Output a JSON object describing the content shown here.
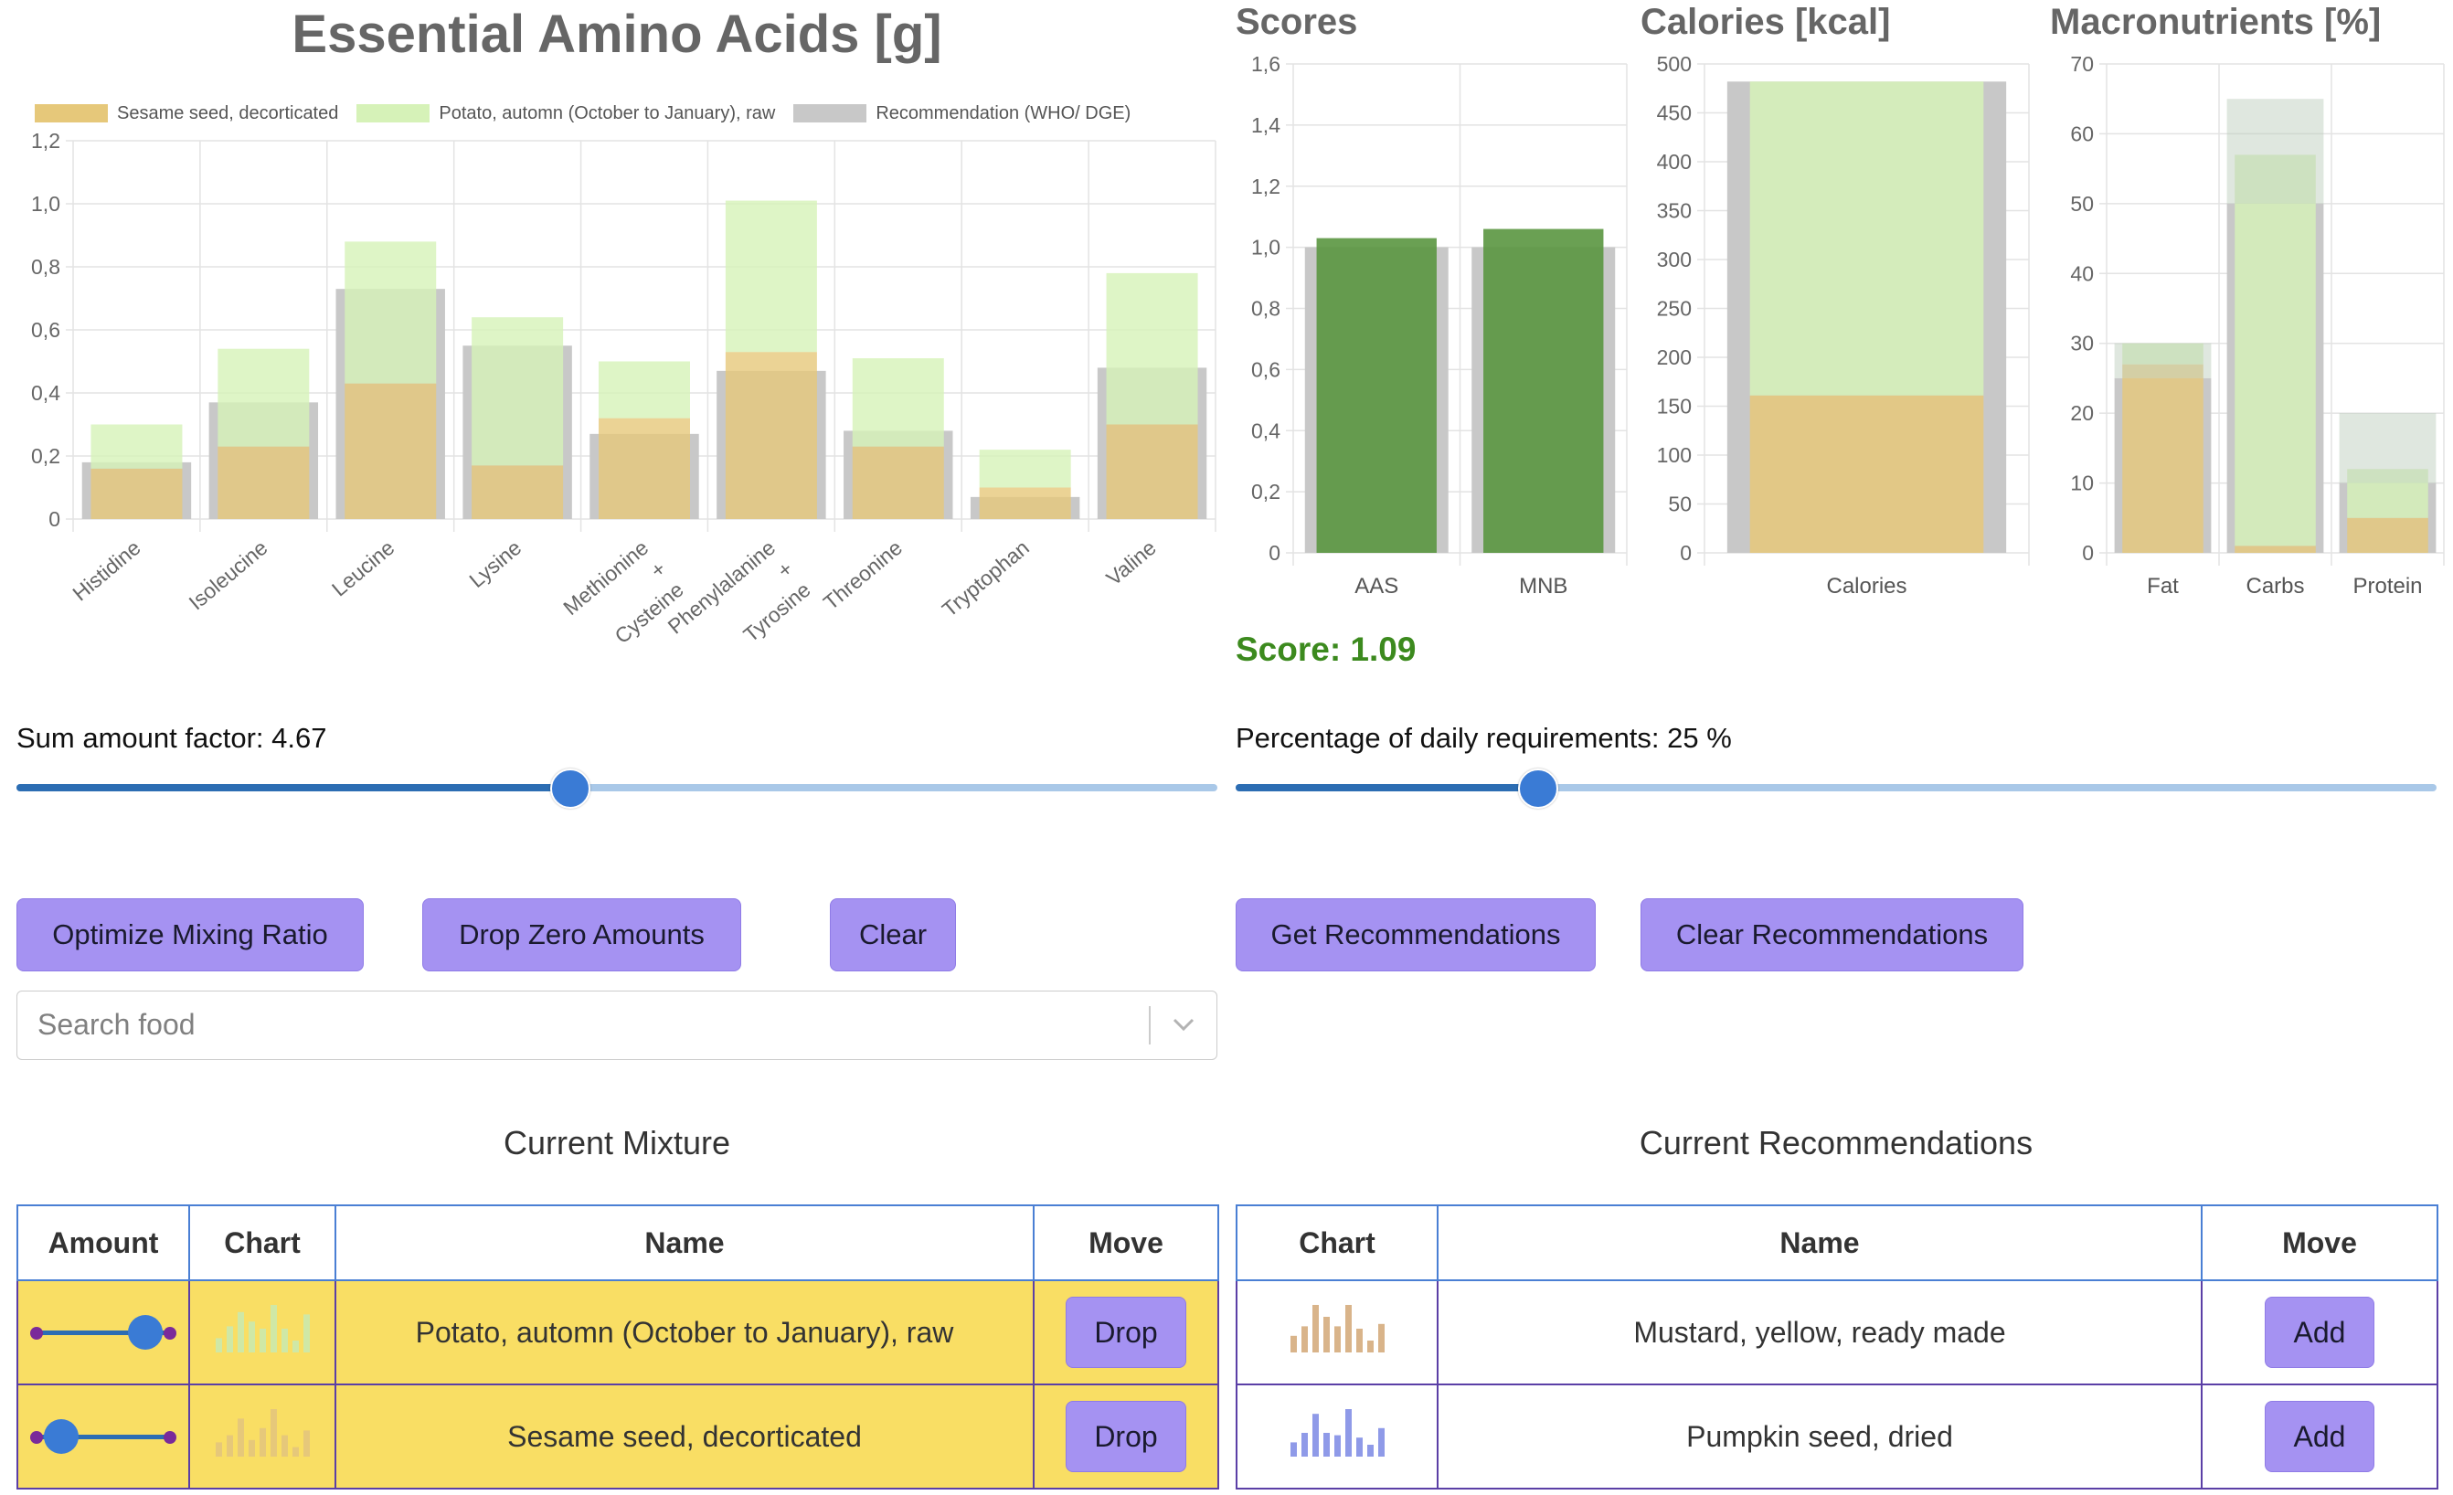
{
  "colors": {
    "sesame": "#e6c87a",
    "potato": "#d6f2b8",
    "recommendation": "#c8c8c8",
    "score_bar": "#5a9640",
    "accent_button": "#a592f2",
    "mixture_row": "#f9de64",
    "score_text": "#3c8a1e"
  },
  "header": {
    "title": "Essential Amino Acids [g]"
  },
  "legend": [
    {
      "label": "Sesame seed, decorticated",
      "color": "#e6c87a"
    },
    {
      "label": "Potato, automn (October to January), raw",
      "color": "#d6f2b8"
    },
    {
      "label": "Recommendation (WHO/ DGE)",
      "color": "#c8c8c8"
    }
  ],
  "chart_data": [
    {
      "type": "bar",
      "title": "Essential Amino Acids [g]",
      "categories": [
        "Histidine",
        "Isoleucine",
        "Leucine",
        "Lysine",
        [
          "Methionine",
          "+",
          "Cysteine"
        ],
        [
          "Phenylalanine",
          "+",
          "Tyrosine"
        ],
        "Threonine",
        "Tryptophan",
        "Valine"
      ],
      "ylim": [
        0,
        1.2
      ],
      "yticks": [
        "0",
        "0,2",
        "0,4",
        "0,6",
        "0,8",
        "1,0",
        "1,2"
      ],
      "series": [
        {
          "name": "Sesame seed, decorticated",
          "stack": "mix",
          "values": [
            0.16,
            0.23,
            0.43,
            0.17,
            0.32,
            0.53,
            0.23,
            0.1,
            0.3
          ]
        },
        {
          "name": "Potato, automn (October to January), raw",
          "stack": "mix",
          "values": [
            0.14,
            0.31,
            0.45,
            0.47,
            0.18,
            0.48,
            0.28,
            0.12,
            0.48
          ]
        },
        {
          "name": "Recommendation (WHO/ DGE)",
          "stack": "rec",
          "values": [
            0.18,
            0.37,
            0.73,
            0.55,
            0.27,
            0.47,
            0.28,
            0.07,
            0.48
          ]
        }
      ],
      "grid": true,
      "legend_position": "top"
    },
    {
      "type": "bar",
      "title": "Scores",
      "categories": [
        "AAS",
        "MNB"
      ],
      "ylim": [
        0,
        1.6
      ],
      "yticks": [
        "0",
        "0,2",
        "0,4",
        "0,6",
        "0,8",
        "1,0",
        "1,2",
        "1,4",
        "1,6"
      ],
      "series": [
        {
          "name": "Recommendation",
          "stack": "rec",
          "values": [
            1.0,
            1.0
          ]
        },
        {
          "name": "Score",
          "stack": "mix",
          "values": [
            1.03,
            1.06
          ]
        }
      ],
      "grid": true
    },
    {
      "type": "bar",
      "title": "Calories [kcal]",
      "categories": [
        "Calories"
      ],
      "ylim": [
        0,
        500
      ],
      "yticks": [
        "0",
        "50",
        "100",
        "150",
        "200",
        "250",
        "300",
        "350",
        "400",
        "450",
        "500"
      ],
      "series": [
        {
          "name": "Recommendation",
          "stack": "rec",
          "values": [
            482
          ]
        },
        {
          "name": "Sesame seed, decorticated",
          "stack": "mix",
          "values": [
            161
          ]
        },
        {
          "name": "Potato, automn (October to January), raw",
          "stack": "mix",
          "values": [
            321
          ]
        }
      ],
      "grid": true
    },
    {
      "type": "bar",
      "title": "Macronutrients [%]",
      "categories": [
        "Fat",
        "Carbs",
        "Protein"
      ],
      "ylim": [
        0,
        70
      ],
      "yticks": [
        "0",
        "10",
        "20",
        "30",
        "40",
        "50",
        "60",
        "70"
      ],
      "series": [
        {
          "name": "Recommendation",
          "stack": "rec",
          "values": [
            25,
            50,
            10
          ]
        },
        {
          "name": "Sesame seed, decorticated",
          "stack": "mix",
          "values": [
            27,
            1,
            5
          ]
        },
        {
          "name": "Potato, automn (October to January), raw",
          "stack": "mix",
          "values": [
            3,
            56,
            7
          ]
        }
      ],
      "grid": true
    }
  ],
  "extra_bars": {
    "macros_top_recommendation": [
      30,
      65,
      20
    ]
  },
  "score_label": "Score: 1.09",
  "left_controls": {
    "sum_factor_label": "Sum amount factor: 4.67",
    "sum_factor_value": 0.46,
    "optimize_label": "Optimize Mixing Ratio",
    "drop_zero_label": "Drop Zero Amounts",
    "clear_label": "Clear",
    "search_placeholder": "Search food"
  },
  "right_controls": {
    "daily_req_label": "Percentage of daily requirements: 25 %",
    "daily_req_value": 0.25,
    "get_rec_label": "Get Recommendations",
    "clear_rec_label": "Clear Recommendations"
  },
  "mixture": {
    "title": "Current Mixture",
    "headers": {
      "amount": "Amount",
      "chart": "Chart",
      "name": "Name",
      "move": "Move"
    },
    "rows": [
      {
        "name": "Potato, automn (October to January), raw",
        "amount": 0.79,
        "button": "Drop",
        "bars": [
          0.3,
          0.55,
          0.85,
          0.65,
          0.5,
          1.0,
          0.5,
          0.25,
          0.8
        ],
        "bar_color": "#cfe8a6"
      },
      {
        "name": "Sesame seed, decorticated",
        "amount": 0.21,
        "button": "Drop",
        "bars": [
          0.3,
          0.45,
          0.8,
          0.35,
          0.6,
          1.0,
          0.45,
          0.2,
          0.55
        ],
        "bar_color": "#e6c87a"
      }
    ]
  },
  "recommendations": {
    "title": "Current Recommendations",
    "headers": {
      "chart": "Chart",
      "name": "Name",
      "move": "Move"
    },
    "rows": [
      {
        "name": "Mustard, yellow, ready made",
        "button": "Add",
        "bars": [
          0.35,
          0.55,
          1.0,
          0.75,
          0.55,
          1.0,
          0.5,
          0.25,
          0.6
        ],
        "bar_color": "#d9b48a"
      },
      {
        "name": "Pumpkin seed, dried",
        "button": "Add",
        "bars": [
          0.3,
          0.5,
          0.9,
          0.5,
          0.45,
          1.0,
          0.4,
          0.25,
          0.6
        ],
        "bar_color": "#8f9ae8"
      }
    ]
  }
}
